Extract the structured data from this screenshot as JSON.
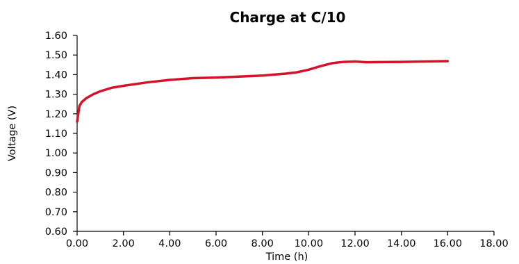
{
  "chart_data": {
    "type": "line",
    "title": "Charge at C/10",
    "xlabel": "Time (h)",
    "ylabel": "Voltage (V)",
    "xlim": [
      0,
      18
    ],
    "ylim": [
      0.6,
      1.6
    ],
    "x_ticks": [
      "0.00",
      "2.00",
      "4.00",
      "6.00",
      "8.00",
      "10.00",
      "12.00",
      "14.00",
      "16.00",
      "18.00"
    ],
    "y_ticks": [
      "0.60",
      "0.70",
      "0.80",
      "0.90",
      "1.00",
      "1.10",
      "1.20",
      "1.30",
      "1.40",
      "1.50",
      "1.60"
    ],
    "grid": false,
    "series": [
      {
        "color": "#d6112a",
        "points": [
          [
            0.0,
            1.16
          ],
          [
            0.05,
            1.2
          ],
          [
            0.1,
            1.24
          ],
          [
            0.2,
            1.26
          ],
          [
            0.4,
            1.28
          ],
          [
            0.7,
            1.3
          ],
          [
            1.0,
            1.315
          ],
          [
            1.5,
            1.333
          ],
          [
            2.0,
            1.343
          ],
          [
            3.0,
            1.36
          ],
          [
            4.0,
            1.373
          ],
          [
            5.0,
            1.382
          ],
          [
            6.0,
            1.385
          ],
          [
            7.0,
            1.39
          ],
          [
            8.0,
            1.395
          ],
          [
            9.0,
            1.405
          ],
          [
            9.5,
            1.412
          ],
          [
            10.0,
            1.425
          ],
          [
            10.5,
            1.443
          ],
          [
            11.0,
            1.458
          ],
          [
            11.5,
            1.465
          ],
          [
            12.0,
            1.467
          ],
          [
            12.5,
            1.463
          ],
          [
            13.0,
            1.464
          ],
          [
            14.0,
            1.465
          ],
          [
            15.0,
            1.467
          ],
          [
            16.0,
            1.469
          ]
        ]
      }
    ]
  }
}
